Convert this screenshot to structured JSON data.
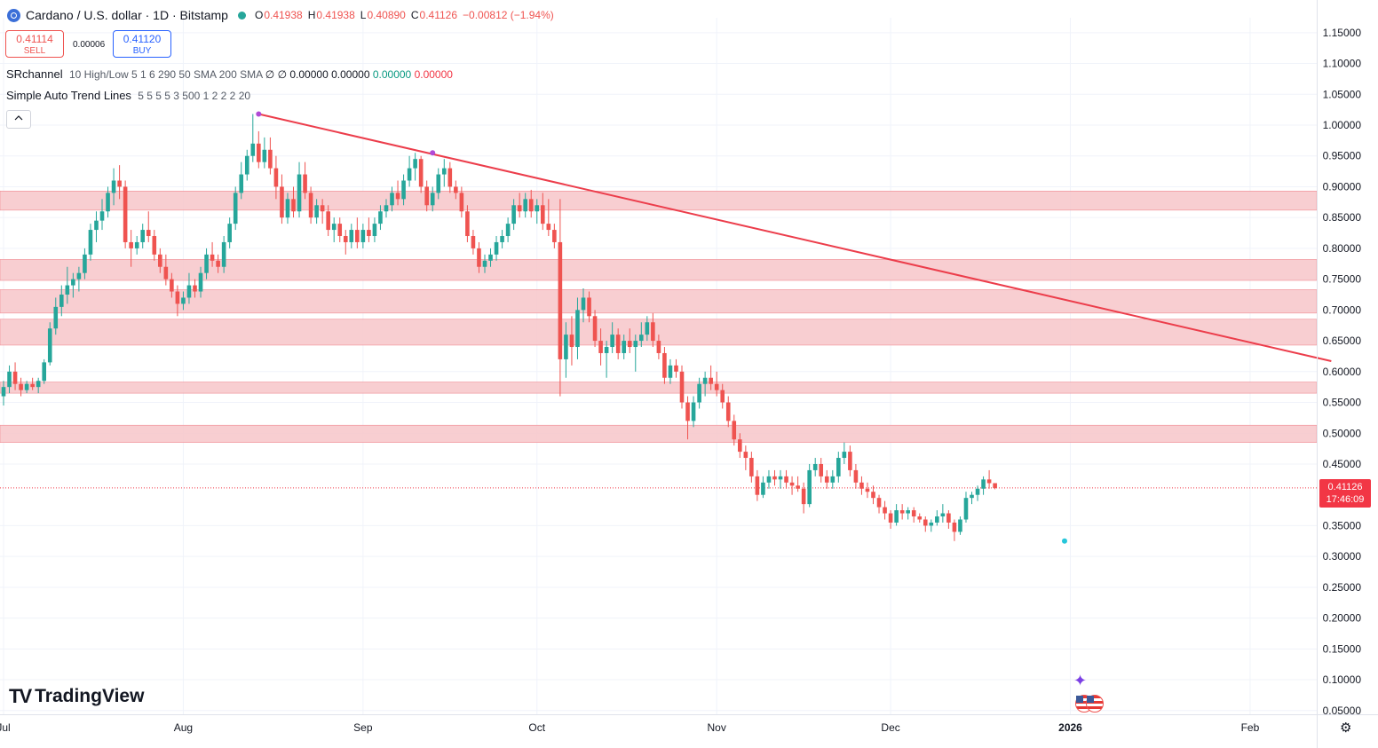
{
  "header": {
    "title": "Cardano / U.S. dollar · 1D · Bitstamp",
    "ohlc": [
      {
        "k": "O",
        "v": "0.41938"
      },
      {
        "k": "H",
        "v": "0.41938"
      },
      {
        "k": "L",
        "v": "0.40890"
      },
      {
        "k": "C",
        "v": "0.41126"
      }
    ],
    "change": "−0.00812 (−1.94%)"
  },
  "trade": {
    "sell_price": "0.41114",
    "sell_label": "SELL",
    "spread": "0.00006",
    "buy_price": "0.41120",
    "buy_label": "BUY"
  },
  "indicators": {
    "sr": {
      "name": "SRchannel",
      "params": "10 High/Low 5 1 6 290 50 SMA 200 SMA",
      "empties": "∅ ∅",
      "v1": "0.00000",
      "v2": "0.00000",
      "v3": "0.00000",
      "v4": "0.00000"
    },
    "trend": {
      "name": "Simple Auto Trend Lines",
      "params": "5 5 5 5 3 500 1 2 2 2 20"
    }
  },
  "collapse_icon": "chevron-up-icon",
  "logo": {
    "text": "TradingView",
    "mark": "TV"
  },
  "last_price": {
    "value": "0.41126",
    "countdown": "17:46:09"
  },
  "colors": {
    "up": "#26a69a",
    "down": "#ef5350",
    "zone": "#f7c6c9",
    "trendline": "#ec3d4b",
    "price_tag": "#f23645"
  },
  "chart_data": {
    "type": "candlestick",
    "y_axis": {
      "min": 0.03,
      "max": 1.18,
      "position": "right",
      "ticks": [
        "1.15000",
        "1.10000",
        "1.05000",
        "1.00000",
        "0.95000",
        "0.90000",
        "0.85000",
        "0.80000",
        "0.75000",
        "0.70000",
        "0.65000",
        "0.60000",
        "0.55000",
        "0.50000",
        "0.45000",
        "0.35000",
        "0.30000",
        "0.25000",
        "0.20000",
        "0.15000",
        "0.10000",
        "0.05000"
      ]
    },
    "x_axis": {
      "ticks": [
        {
          "label": "Jul",
          "day": 0
        },
        {
          "label": "Aug",
          "day": 31
        },
        {
          "label": "Sep",
          "day": 62
        },
        {
          "label": "Oct",
          "day": 92
        },
        {
          "label": "Nov",
          "day": 123
        },
        {
          "label": "Dec",
          "day": 153
        },
        {
          "label": "2026",
          "day": 184,
          "bold": true
        },
        {
          "label": "Feb",
          "day": 215
        }
      ]
    },
    "grid": true,
    "sr_zones": [
      [
        0.862,
        0.893
      ],
      [
        0.748,
        0.782
      ],
      [
        0.695,
        0.733
      ],
      [
        0.643,
        0.685
      ],
      [
        0.565,
        0.583
      ],
      [
        0.485,
        0.513
      ]
    ],
    "trendline": {
      "from": {
        "day": 44,
        "price": 1.018
      },
      "to": {
        "day": 229,
        "price": 0.617
      }
    },
    "pivots": [
      {
        "day": 44,
        "price": 1.018,
        "color": "#b04ad6"
      },
      {
        "day": 74,
        "price": 0.955,
        "color": "#b04ad6"
      },
      {
        "day": 183,
        "price": 0.325,
        "color": "#26c6da"
      }
    ],
    "current_price": 0.41126,
    "candles": [
      [
        0.56,
        0.585,
        0.545,
        0.575
      ],
      [
        0.575,
        0.61,
        0.565,
        0.6
      ],
      [
        0.6,
        0.615,
        0.57,
        0.58
      ],
      [
        0.58,
        0.59,
        0.56,
        0.57
      ],
      [
        0.57,
        0.585,
        0.565,
        0.58
      ],
      [
        0.58,
        0.59,
        0.57,
        0.575
      ],
      [
        0.575,
        0.59,
        0.565,
        0.585
      ],
      [
        0.585,
        0.62,
        0.58,
        0.615
      ],
      [
        0.615,
        0.68,
        0.61,
        0.67
      ],
      [
        0.67,
        0.72,
        0.66,
        0.705
      ],
      [
        0.705,
        0.74,
        0.69,
        0.725
      ],
      [
        0.725,
        0.77,
        0.71,
        0.74
      ],
      [
        0.74,
        0.76,
        0.72,
        0.75
      ],
      [
        0.75,
        0.77,
        0.73,
        0.76
      ],
      [
        0.76,
        0.8,
        0.75,
        0.79
      ],
      [
        0.79,
        0.84,
        0.78,
        0.83
      ],
      [
        0.83,
        0.86,
        0.81,
        0.845
      ],
      [
        0.845,
        0.88,
        0.83,
        0.86
      ],
      [
        0.86,
        0.9,
        0.85,
        0.89
      ],
      [
        0.89,
        0.93,
        0.87,
        0.91
      ],
      [
        0.91,
        0.935,
        0.88,
        0.9
      ],
      [
        0.9,
        0.91,
        0.8,
        0.81
      ],
      [
        0.81,
        0.83,
        0.77,
        0.8
      ],
      [
        0.8,
        0.82,
        0.79,
        0.81
      ],
      [
        0.81,
        0.84,
        0.8,
        0.83
      ],
      [
        0.83,
        0.86,
        0.81,
        0.82
      ],
      [
        0.82,
        0.83,
        0.78,
        0.79
      ],
      [
        0.79,
        0.8,
        0.76,
        0.77
      ],
      [
        0.77,
        0.79,
        0.74,
        0.75
      ],
      [
        0.75,
        0.76,
        0.72,
        0.73
      ],
      [
        0.73,
        0.74,
        0.69,
        0.71
      ],
      [
        0.71,
        0.73,
        0.7,
        0.72
      ],
      [
        0.72,
        0.76,
        0.71,
        0.74
      ],
      [
        0.74,
        0.75,
        0.72,
        0.73
      ],
      [
        0.73,
        0.77,
        0.72,
        0.76
      ],
      [
        0.76,
        0.8,
        0.75,
        0.79
      ],
      [
        0.79,
        0.81,
        0.77,
        0.78
      ],
      [
        0.78,
        0.79,
        0.76,
        0.77
      ],
      [
        0.77,
        0.82,
        0.76,
        0.81
      ],
      [
        0.81,
        0.85,
        0.8,
        0.84
      ],
      [
        0.84,
        0.9,
        0.83,
        0.89
      ],
      [
        0.89,
        0.94,
        0.88,
        0.92
      ],
      [
        0.92,
        0.96,
        0.91,
        0.95
      ],
      [
        0.95,
        1.018,
        0.94,
        0.97
      ],
      [
        0.97,
        0.99,
        0.93,
        0.94
      ],
      [
        0.94,
        0.98,
        0.93,
        0.96
      ],
      [
        0.96,
        0.98,
        0.92,
        0.93
      ],
      [
        0.93,
        0.95,
        0.88,
        0.9
      ],
      [
        0.9,
        0.92,
        0.84,
        0.85
      ],
      [
        0.85,
        0.89,
        0.84,
        0.88
      ],
      [
        0.88,
        0.9,
        0.85,
        0.86
      ],
      [
        0.86,
        0.94,
        0.85,
        0.92
      ],
      [
        0.92,
        0.94,
        0.88,
        0.89
      ],
      [
        0.89,
        0.9,
        0.84,
        0.85
      ],
      [
        0.85,
        0.88,
        0.84,
        0.87
      ],
      [
        0.87,
        0.88,
        0.84,
        0.86
      ],
      [
        0.86,
        0.87,
        0.82,
        0.83
      ],
      [
        0.83,
        0.85,
        0.81,
        0.84
      ],
      [
        0.84,
        0.85,
        0.81,
        0.82
      ],
      [
        0.82,
        0.83,
        0.79,
        0.81
      ],
      [
        0.81,
        0.84,
        0.8,
        0.83
      ],
      [
        0.83,
        0.85,
        0.8,
        0.81
      ],
      [
        0.81,
        0.84,
        0.8,
        0.83
      ],
      [
        0.83,
        0.85,
        0.81,
        0.82
      ],
      [
        0.82,
        0.85,
        0.81,
        0.84
      ],
      [
        0.84,
        0.87,
        0.83,
        0.86
      ],
      [
        0.86,
        0.88,
        0.85,
        0.87
      ],
      [
        0.87,
        0.9,
        0.86,
        0.89
      ],
      [
        0.89,
        0.91,
        0.87,
        0.88
      ],
      [
        0.88,
        0.92,
        0.87,
        0.91
      ],
      [
        0.91,
        0.95,
        0.9,
        0.93
      ],
      [
        0.93,
        0.955,
        0.91,
        0.945
      ],
      [
        0.945,
        0.95,
        0.89,
        0.9
      ],
      [
        0.9,
        0.91,
        0.86,
        0.87
      ],
      [
        0.87,
        0.9,
        0.86,
        0.89
      ],
      [
        0.89,
        0.93,
        0.88,
        0.92
      ],
      [
        0.92,
        0.945,
        0.9,
        0.93
      ],
      [
        0.93,
        0.94,
        0.89,
        0.9
      ],
      [
        0.9,
        0.91,
        0.88,
        0.89
      ],
      [
        0.89,
        0.9,
        0.85,
        0.86
      ],
      [
        0.86,
        0.87,
        0.81,
        0.82
      ],
      [
        0.82,
        0.83,
        0.79,
        0.8
      ],
      [
        0.8,
        0.81,
        0.76,
        0.77
      ],
      [
        0.77,
        0.79,
        0.76,
        0.78
      ],
      [
        0.78,
        0.8,
        0.77,
        0.79
      ],
      [
        0.79,
        0.82,
        0.78,
        0.81
      ],
      [
        0.81,
        0.83,
        0.8,
        0.82
      ],
      [
        0.82,
        0.85,
        0.81,
        0.84
      ],
      [
        0.84,
        0.88,
        0.83,
        0.87
      ],
      [
        0.87,
        0.89,
        0.85,
        0.86
      ],
      [
        0.86,
        0.89,
        0.85,
        0.88
      ],
      [
        0.88,
        0.895,
        0.85,
        0.86
      ],
      [
        0.86,
        0.88,
        0.84,
        0.87
      ],
      [
        0.87,
        0.89,
        0.83,
        0.84
      ],
      [
        0.84,
        0.88,
        0.82,
        0.83
      ],
      [
        0.83,
        0.84,
        0.8,
        0.81
      ],
      [
        0.81,
        0.88,
        0.56,
        0.62
      ],
      [
        0.62,
        0.68,
        0.59,
        0.66
      ],
      [
        0.66,
        0.69,
        0.61,
        0.64
      ],
      [
        0.64,
        0.72,
        0.62,
        0.7
      ],
      [
        0.7,
        0.735,
        0.68,
        0.72
      ],
      [
        0.72,
        0.73,
        0.68,
        0.69
      ],
      [
        0.69,
        0.7,
        0.64,
        0.65
      ],
      [
        0.65,
        0.67,
        0.61,
        0.63
      ],
      [
        0.63,
        0.65,
        0.59,
        0.64
      ],
      [
        0.64,
        0.68,
        0.63,
        0.66
      ],
      [
        0.66,
        0.67,
        0.62,
        0.63
      ],
      [
        0.63,
        0.66,
        0.62,
        0.65
      ],
      [
        0.65,
        0.67,
        0.63,
        0.64
      ],
      [
        0.64,
        0.66,
        0.6,
        0.65
      ],
      [
        0.65,
        0.68,
        0.64,
        0.66
      ],
      [
        0.66,
        0.69,
        0.65,
        0.68
      ],
      [
        0.68,
        0.695,
        0.64,
        0.65
      ],
      [
        0.65,
        0.66,
        0.62,
        0.63
      ],
      [
        0.63,
        0.64,
        0.58,
        0.59
      ],
      [
        0.59,
        0.62,
        0.58,
        0.61
      ],
      [
        0.61,
        0.62,
        0.59,
        0.6
      ],
      [
        0.6,
        0.61,
        0.54,
        0.55
      ],
      [
        0.55,
        0.56,
        0.49,
        0.52
      ],
      [
        0.52,
        0.56,
        0.51,
        0.55
      ],
      [
        0.55,
        0.59,
        0.54,
        0.58
      ],
      [
        0.58,
        0.6,
        0.56,
        0.59
      ],
      [
        0.59,
        0.61,
        0.57,
        0.58
      ],
      [
        0.58,
        0.6,
        0.56,
        0.57
      ],
      [
        0.57,
        0.58,
        0.54,
        0.55
      ],
      [
        0.55,
        0.56,
        0.51,
        0.52
      ],
      [
        0.52,
        0.53,
        0.48,
        0.49
      ],
      [
        0.49,
        0.5,
        0.46,
        0.47
      ],
      [
        0.47,
        0.48,
        0.44,
        0.46
      ],
      [
        0.46,
        0.47,
        0.42,
        0.43
      ],
      [
        0.43,
        0.44,
        0.39,
        0.4
      ],
      [
        0.4,
        0.43,
        0.395,
        0.42
      ],
      [
        0.42,
        0.44,
        0.41,
        0.43
      ],
      [
        0.43,
        0.44,
        0.415,
        0.425
      ],
      [
        0.425,
        0.44,
        0.41,
        0.43
      ],
      [
        0.43,
        0.44,
        0.41,
        0.42
      ],
      [
        0.42,
        0.43,
        0.4,
        0.415
      ],
      [
        0.415,
        0.43,
        0.405,
        0.41
      ],
      [
        0.41,
        0.42,
        0.37,
        0.385
      ],
      [
        0.385,
        0.45,
        0.38,
        0.44
      ],
      [
        0.44,
        0.46,
        0.43,
        0.45
      ],
      [
        0.45,
        0.46,
        0.42,
        0.43
      ],
      [
        0.43,
        0.44,
        0.41,
        0.42
      ],
      [
        0.42,
        0.44,
        0.41,
        0.43
      ],
      [
        0.43,
        0.47,
        0.42,
        0.46
      ],
      [
        0.46,
        0.485,
        0.45,
        0.47
      ],
      [
        0.47,
        0.48,
        0.43,
        0.44
      ],
      [
        0.44,
        0.45,
        0.41,
        0.42
      ],
      [
        0.42,
        0.43,
        0.4,
        0.41
      ],
      [
        0.41,
        0.42,
        0.395,
        0.405
      ],
      [
        0.405,
        0.415,
        0.385,
        0.395
      ],
      [
        0.395,
        0.4,
        0.37,
        0.38
      ],
      [
        0.38,
        0.39,
        0.36,
        0.37
      ],
      [
        0.37,
        0.375,
        0.345,
        0.355
      ],
      [
        0.355,
        0.385,
        0.35,
        0.375
      ],
      [
        0.375,
        0.385,
        0.36,
        0.37
      ],
      [
        0.37,
        0.38,
        0.36,
        0.375
      ],
      [
        0.375,
        0.38,
        0.355,
        0.365
      ],
      [
        0.365,
        0.37,
        0.355,
        0.36
      ],
      [
        0.36,
        0.365,
        0.34,
        0.35
      ],
      [
        0.35,
        0.36,
        0.34,
        0.355
      ],
      [
        0.355,
        0.375,
        0.35,
        0.365
      ],
      [
        0.365,
        0.385,
        0.355,
        0.37
      ],
      [
        0.37,
        0.375,
        0.345,
        0.355
      ],
      [
        0.355,
        0.36,
        0.325,
        0.34
      ],
      [
        0.34,
        0.365,
        0.335,
        0.36
      ],
      [
        0.36,
        0.405,
        0.355,
        0.395
      ],
      [
        0.395,
        0.405,
        0.385,
        0.4
      ],
      [
        0.4,
        0.415,
        0.39,
        0.41
      ],
      [
        0.41,
        0.43,
        0.4,
        0.425
      ],
      [
        0.425,
        0.44,
        0.41,
        0.419
      ],
      [
        0.419,
        0.419,
        0.409,
        0.411
      ]
    ]
  }
}
